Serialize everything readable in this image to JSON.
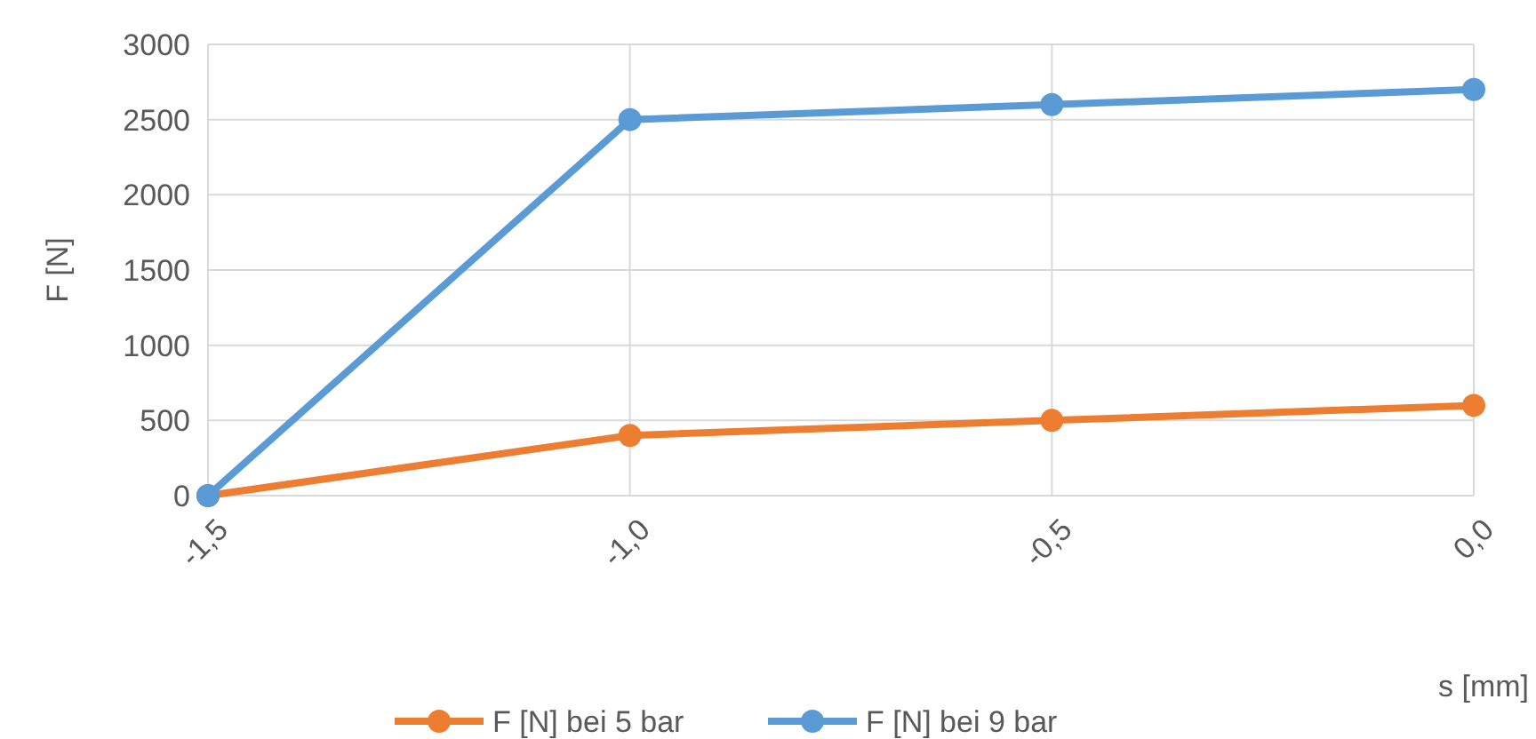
{
  "chart_data": {
    "type": "line",
    "xlabel": "s [mm]",
    "ylabel": "F [N]",
    "x": [
      -1.5,
      -1.0,
      -0.5,
      0.0
    ],
    "xlim": [
      -1.5,
      0
    ],
    "xticks": [
      {
        "value": -1.5,
        "label": "-1,5"
      },
      {
        "value": -1.0,
        "label": "-1,0"
      },
      {
        "value": -0.5,
        "label": "-0,5"
      },
      {
        "value": 0,
        "label": "0,0"
      }
    ],
    "ylim": [
      0,
      3000
    ],
    "yticks": [
      0,
      500,
      1000,
      1500,
      2000,
      2500,
      3000
    ],
    "series": [
      {
        "name": "F [N] bei 5 bar",
        "color": "#ed7d31",
        "values": [
          0,
          400,
          500,
          600
        ]
      },
      {
        "name": "F [N] bei 9 bar",
        "color": "#5b9bd5",
        "values": [
          0,
          2500,
          2600,
          2700
        ]
      }
    ],
    "grid": true,
    "legend": "bottom",
    "marker": "circle",
    "line_style": "solid"
  }
}
